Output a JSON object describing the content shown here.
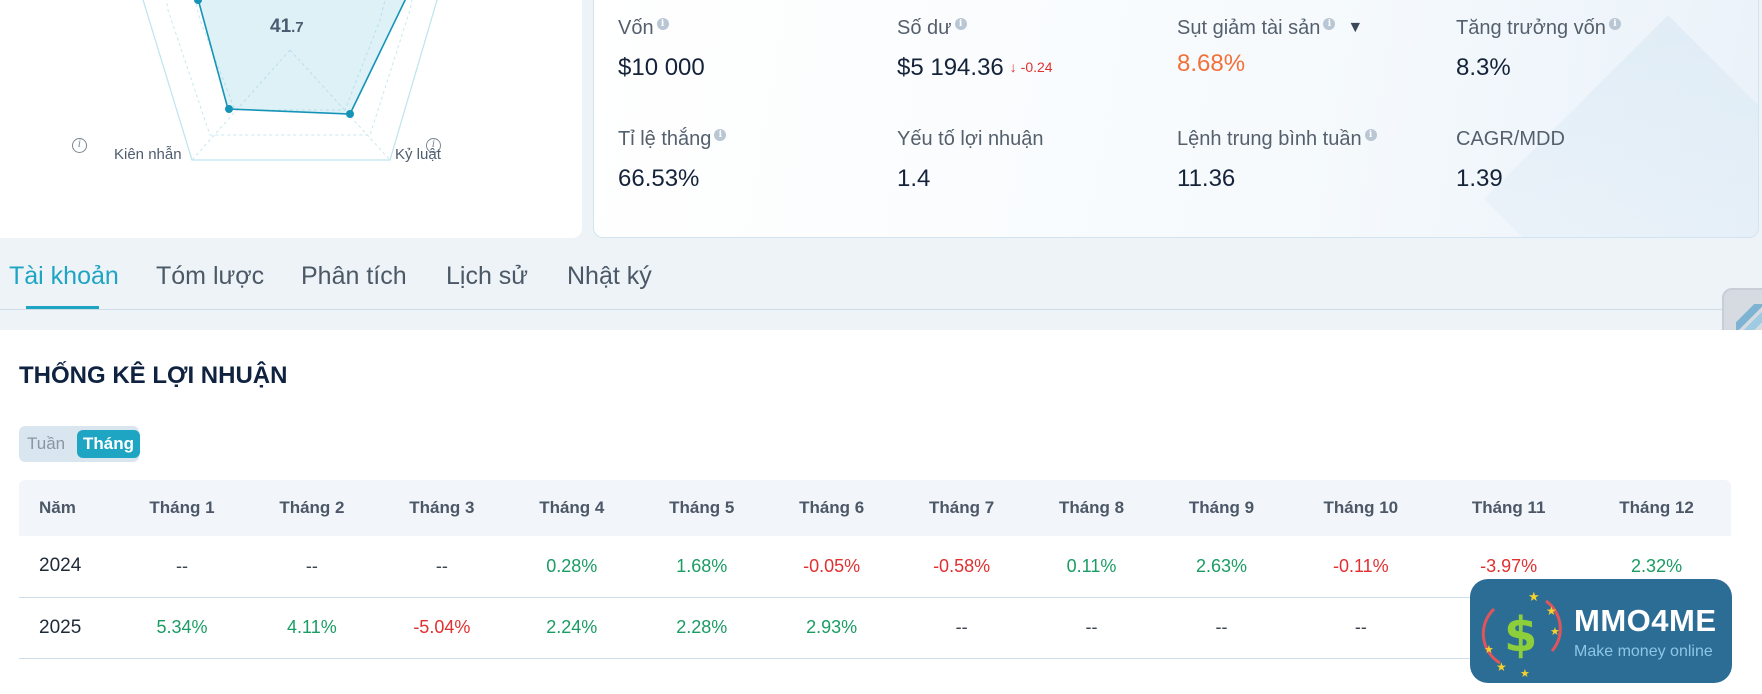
{
  "radar": {
    "center_value_main": "41",
    "center_value_decimal": ".7",
    "axis_left_label": "Kiên nhẫn",
    "axis_right_label": "Kỷ luật"
  },
  "stats": [
    {
      "label": "Vốn",
      "value": "$10 000",
      "info": true
    },
    {
      "label": "Số dư",
      "value": "$5 194.36",
      "delta": "-0.24",
      "info": true
    },
    {
      "label": "Sụt giảm tài sản",
      "value": "8.68%",
      "info": true,
      "dropdown": true,
      "accent": "#f2703a"
    },
    {
      "label": "Tăng trưởng vốn",
      "value": "8.3%",
      "info": true
    },
    {
      "label": "Tỉ lệ thắng",
      "value": "66.53%",
      "info": true
    },
    {
      "label": "Yếu tố lợi nhuận",
      "value": "1.4",
      "info": false
    },
    {
      "label": "Lệnh trung bình tuần",
      "value": "11.36",
      "info": true
    },
    {
      "label": "CAGR/MDD",
      "value": "1.39",
      "info": false
    }
  ],
  "tabs": [
    "Tài khoản",
    "Tóm lược",
    "Phân tích",
    "Lịch sử",
    "Nhật ký"
  ],
  "active_tab": "Tài khoản",
  "profit": {
    "title": "THỐNG KÊ LỢI NHUẬN",
    "toggle": {
      "week": "Tuần",
      "month": "Tháng",
      "selected": "Tháng"
    },
    "headers": [
      "Năm",
      "Tháng 1",
      "Tháng 2",
      "Tháng 3",
      "Tháng 4",
      "Tháng 5",
      "Tháng 6",
      "Tháng 7",
      "Tháng 8",
      "Tháng 9",
      "Tháng 10",
      "Tháng 11",
      "Tháng 12"
    ],
    "rows": [
      {
        "year": "2024",
        "cells": [
          "--",
          "--",
          "--",
          "0.28%",
          "1.68%",
          "-0.05%",
          "-0.58%",
          "0.11%",
          "2.63%",
          "-0.11%",
          "-3.97%",
          "2.32%"
        ]
      },
      {
        "year": "2025",
        "cells": [
          "5.34%",
          "4.11%",
          "-5.04%",
          "2.24%",
          "2.28%",
          "2.93%",
          "--",
          "--",
          "--",
          "--",
          "--",
          "--"
        ]
      }
    ]
  },
  "colors": {
    "positive": "#1a9c63",
    "negative": "#e13030",
    "accent": "#1ea5c3"
  },
  "watermark": {
    "name": "MMO4ME",
    "tagline": "Make money online"
  }
}
